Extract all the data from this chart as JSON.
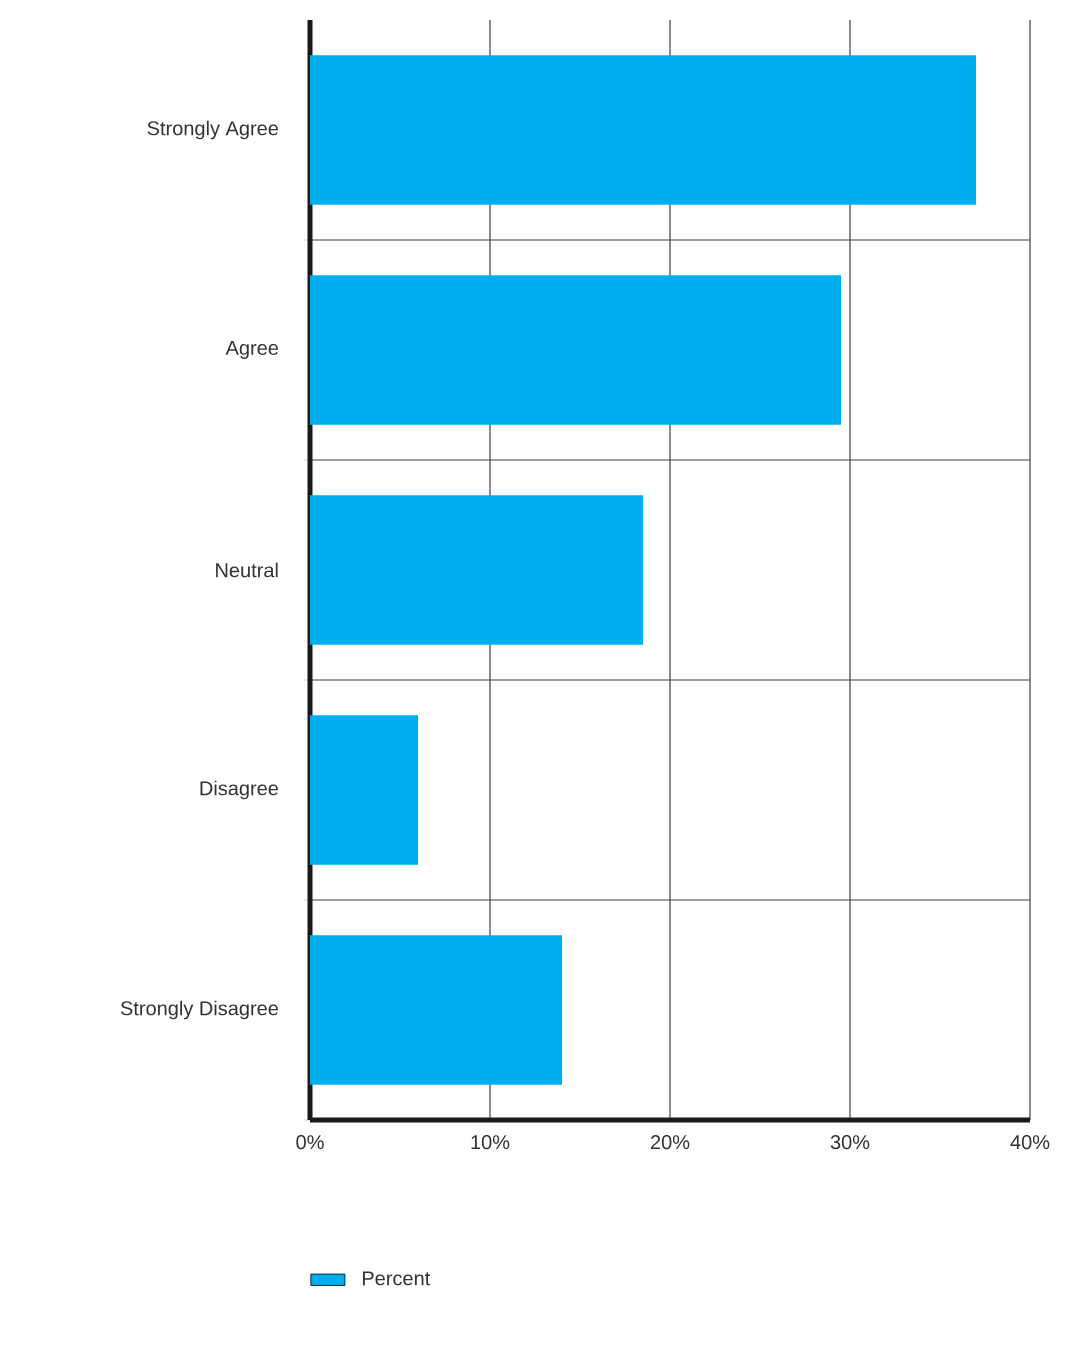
{
  "chart_data": {
    "type": "bar",
    "orientation": "horizontal",
    "categories": [
      "Strongly Agree",
      "Agree",
      "Neutral",
      "Disagree",
      "Strongly Disagree"
    ],
    "series": [
      {
        "name": "Percent",
        "color": "#00aeef",
        "values": [
          37,
          29.5,
          18.5,
          6,
          14
        ]
      }
    ],
    "xlim": [
      0,
      40
    ],
    "xticks": [
      {
        "value": 0,
        "label": "0%"
      },
      {
        "value": 10,
        "label": "10%"
      },
      {
        "value": 20,
        "label": "20%"
      },
      {
        "value": 30,
        "label": "30%"
      },
      {
        "value": 40,
        "label": "40%"
      }
    ],
    "grid": true,
    "legend": "bottom"
  }
}
